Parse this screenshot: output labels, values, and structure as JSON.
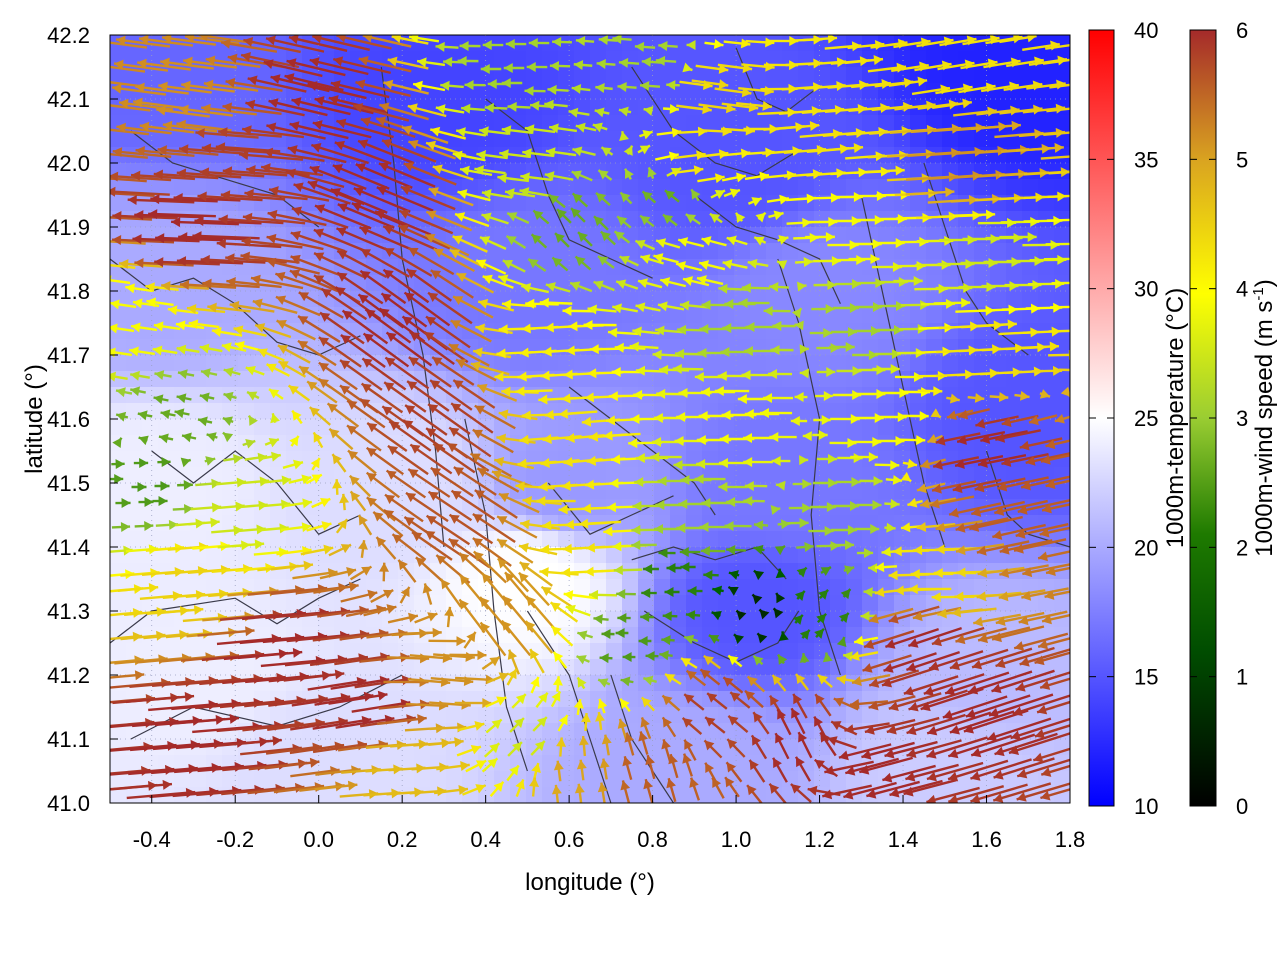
{
  "chart_data": {
    "type": "heatmap",
    "subtype": "temperature field with wind vectors and terrain contours",
    "xlabel": "longitude (°)",
    "ylabel": "latitude (°)",
    "xlim": [
      -0.5,
      1.8
    ],
    "ylim": [
      41.0,
      42.2
    ],
    "x_ticks": [
      -0.4,
      -0.2,
      0.0,
      0.2,
      0.4,
      0.6,
      0.8,
      1.0,
      1.2,
      1.4,
      1.6,
      1.8
    ],
    "x_tick_labels": [
      "-0.4",
      "-0.2",
      "0.0",
      "0.2",
      "0.4",
      "0.6",
      "0.8",
      "1.0",
      "1.2",
      "1.4",
      "1.6",
      "1.8"
    ],
    "y_ticks": [
      41.0,
      41.1,
      41.2,
      41.3,
      41.4,
      41.5,
      41.6,
      41.7,
      41.8,
      41.9,
      42.0,
      42.1,
      42.2
    ],
    "y_tick_labels": [
      "41.0",
      "41.1",
      "41.2",
      "41.3",
      "41.4",
      "41.5",
      "41.6",
      "41.7",
      "41.8",
      "41.9",
      "42.0",
      "42.1",
      "42.2"
    ],
    "grid": true,
    "temperature_colorbar": {
      "label": "1000m-temperature (°C)",
      "range": [
        10,
        40
      ],
      "ticks": [
        10,
        15,
        20,
        25,
        30,
        35,
        40
      ],
      "tick_labels": [
        "10",
        "15",
        "20",
        "25",
        "30",
        "35",
        "40"
      ],
      "colors": [
        "#0000ff",
        "#ffffff",
        "#ff0000"
      ]
    },
    "wind_colorbar": {
      "label_main": "1000m-wind speed (m s",
      "label_sup": "-1",
      "label_end": ")",
      "range": [
        0,
        6
      ],
      "ticks": [
        0,
        1,
        2,
        3,
        4,
        5,
        6
      ],
      "tick_labels": [
        "0",
        "1",
        "2",
        "3",
        "4",
        "5",
        "6"
      ],
      "colors": [
        "#000000",
        "#006400",
        "#9acd32",
        "#ffff00",
        "#daa520",
        "#a52a2a"
      ]
    },
    "temperature_field": [
      {
        "x": -0.4,
        "y": 42.15,
        "value": 16
      },
      {
        "x": 0.3,
        "y": 42.1,
        "value": 14
      },
      {
        "x": 1.0,
        "y": 42.0,
        "value": 15
      },
      {
        "x": 1.7,
        "y": 42.15,
        "value": 12
      },
      {
        "x": -0.4,
        "y": 41.8,
        "value": 20
      },
      {
        "x": 0.5,
        "y": 41.8,
        "value": 17
      },
      {
        "x": 1.2,
        "y": 41.8,
        "value": 18
      },
      {
        "x": 1.7,
        "y": 41.6,
        "value": 15
      },
      {
        "x": -0.4,
        "y": 41.5,
        "value": 24
      },
      {
        "x": 0.2,
        "y": 41.5,
        "value": 23
      },
      {
        "x": 0.6,
        "y": 41.5,
        "value": 19
      },
      {
        "x": 1.1,
        "y": 41.5,
        "value": 17
      },
      {
        "x": -0.3,
        "y": 41.2,
        "value": 24
      },
      {
        "x": 0.5,
        "y": 41.35,
        "value": 25
      },
      {
        "x": 1.05,
        "y": 41.3,
        "value": 15
      },
      {
        "x": 1.6,
        "y": 41.2,
        "value": 21
      },
      {
        "x": 0.0,
        "y": 41.05,
        "value": 23
      },
      {
        "x": 0.9,
        "y": 41.05,
        "value": 20
      },
      {
        "x": 1.5,
        "y": 41.05,
        "value": 22
      }
    ],
    "wind_regimes": [
      {
        "x": -0.3,
        "y": 42.1,
        "u": -4.5,
        "v": 0.6,
        "speed": 5.0
      },
      {
        "x": -0.2,
        "y": 42.0,
        "u": -5.5,
        "v": 0.4,
        "speed": 5.8
      },
      {
        "x": -0.3,
        "y": 41.9,
        "u": -5.8,
        "v": 0.2,
        "speed": 6.0
      },
      {
        "x": 0.0,
        "y": 42.1,
        "u": -5.0,
        "v": 1.2,
        "speed": 6.0
      },
      {
        "x": 0.15,
        "y": 41.95,
        "u": -4.8,
        "v": 2.0,
        "speed": 6.0
      },
      {
        "x": 0.2,
        "y": 41.75,
        "u": -3.8,
        "v": 2.8,
        "speed": 6.0
      },
      {
        "x": 0.3,
        "y": 41.6,
        "u": -3.5,
        "v": 2.5,
        "speed": 5.8
      },
      {
        "x": 0.35,
        "y": 41.45,
        "u": -3.6,
        "v": 2.4,
        "speed": 5.6
      },
      {
        "x": 0.45,
        "y": 41.3,
        "u": -2.5,
        "v": 3.0,
        "speed": 5.0
      },
      {
        "x": -0.45,
        "y": 41.75,
        "u": -2.0,
        "v": 0.3,
        "speed": 3.5
      },
      {
        "x": -0.35,
        "y": 41.6,
        "u": -1.0,
        "v": 0.2,
        "speed": 2.0
      },
      {
        "x": -0.4,
        "y": 41.5,
        "u": 1.0,
        "v": 0.0,
        "speed": 1.8
      },
      {
        "x": -0.2,
        "y": 41.45,
        "u": 2.5,
        "v": 0.2,
        "speed": 3.0
      },
      {
        "x": -0.3,
        "y": 41.35,
        "u": 3.5,
        "v": 0.3,
        "speed": 4.2
      },
      {
        "x": -0.1,
        "y": 41.25,
        "u": 5.5,
        "v": 0.5,
        "speed": 6.0
      },
      {
        "x": -0.3,
        "y": 41.1,
        "u": 6.0,
        "v": 0.5,
        "speed": 6.0
      },
      {
        "x": 0.1,
        "y": 41.15,
        "u": 5.0,
        "v": 0.8,
        "speed": 6.0
      },
      {
        "x": 0.3,
        "y": 41.2,
        "u": 3.5,
        "v": -0.3,
        "speed": 5.0
      },
      {
        "x": 0.2,
        "y": 41.05,
        "u": 3.0,
        "v": 0.2,
        "speed": 4.5
      },
      {
        "x": 0.5,
        "y": 41.1,
        "u": 1.0,
        "v": 1.0,
        "speed": 3.0
      },
      {
        "x": 0.6,
        "y": 41.05,
        "u": -0.2,
        "v": 1.5,
        "speed": 4.8
      },
      {
        "x": 0.55,
        "y": 41.7,
        "u": -3.0,
        "v": -0.2,
        "speed": 3.8
      },
      {
        "x": 0.6,
        "y": 41.55,
        "u": -3.2,
        "v": -0.3,
        "speed": 4.0
      },
      {
        "x": 0.65,
        "y": 41.4,
        "u": -3.5,
        "v": -0.2,
        "speed": 4.0
      },
      {
        "x": 0.5,
        "y": 42.0,
        "u": -2.5,
        "v": 0.3,
        "speed": 3.0
      },
      {
        "x": 0.45,
        "y": 42.15,
        "u": -1.5,
        "v": 0.0,
        "speed": 2.5
      },
      {
        "x": 0.6,
        "y": 41.9,
        "u": -1.0,
        "v": 1.0,
        "speed": 2.0
      },
      {
        "x": 0.8,
        "y": 42.15,
        "u": -1.5,
        "v": 0.1,
        "speed": 2.5
      },
      {
        "x": 0.85,
        "y": 41.95,
        "u": -1.0,
        "v": 0.8,
        "speed": 2.0
      },
      {
        "x": 0.9,
        "y": 42.0,
        "u": 2.5,
        "v": 0.3,
        "speed": 4.0
      },
      {
        "x": 0.95,
        "y": 42.1,
        "u": 3.0,
        "v": -0.4,
        "speed": 4.2
      },
      {
        "x": 0.9,
        "y": 41.85,
        "u": -2.0,
        "v": 0.5,
        "speed": 3.5
      },
      {
        "x": 1.0,
        "y": 41.75,
        "u": -2.5,
        "v": 0.0,
        "speed": 2.5
      },
      {
        "x": 1.0,
        "y": 41.6,
        "u": -2.8,
        "v": 0.0,
        "speed": 3.5
      },
      {
        "x": 0.9,
        "y": 41.45,
        "u": -2.5,
        "v": 0.0,
        "speed": 2.5
      },
      {
        "x": 0.85,
        "y": 41.35,
        "u": -1.0,
        "v": 0.0,
        "speed": 1.5
      },
      {
        "x": 1.05,
        "y": 41.3,
        "u": -0.2,
        "v": 0.2,
        "speed": 0.5
      },
      {
        "x": 0.75,
        "y": 41.25,
        "u": -0.8,
        "v": 0.0,
        "speed": 1.8
      },
      {
        "x": 0.95,
        "y": 41.15,
        "u": -1.5,
        "v": 1.2,
        "speed": 5.8
      },
      {
        "x": 0.8,
        "y": 41.05,
        "u": -0.5,
        "v": 1.8,
        "speed": 5.5
      },
      {
        "x": 1.15,
        "y": 41.1,
        "u": -1.0,
        "v": 2.0,
        "speed": 6.0
      },
      {
        "x": 1.2,
        "y": 42.05,
        "u": 3.5,
        "v": 0.3,
        "speed": 4.0
      },
      {
        "x": 1.3,
        "y": 41.9,
        "u": 2.5,
        "v": 0.0,
        "speed": 3.5
      },
      {
        "x": 1.3,
        "y": 41.75,
        "u": 2.0,
        "v": 0.0,
        "speed": 2.5
      },
      {
        "x": 1.35,
        "y": 41.6,
        "u": 2.5,
        "v": 0.0,
        "speed": 3.5
      },
      {
        "x": 1.25,
        "y": 41.45,
        "u": 2.0,
        "v": 0.0,
        "speed": 2.5
      },
      {
        "x": 1.2,
        "y": 41.3,
        "u": 0.5,
        "v": 0.5,
        "speed": 1.5
      },
      {
        "x": 1.55,
        "y": 42.15,
        "u": 3.0,
        "v": 0.5,
        "speed": 4.0
      },
      {
        "x": 1.55,
        "y": 42.0,
        "u": 4.5,
        "v": 0.3,
        "speed": 5.0
      },
      {
        "x": 1.6,
        "y": 41.85,
        "u": 3.0,
        "v": 0.0,
        "speed": 3.0
      },
      {
        "x": 1.6,
        "y": 41.7,
        "u": 3.5,
        "v": 0.2,
        "speed": 4.0
      },
      {
        "x": 1.6,
        "y": 41.55,
        "u": -4.0,
        "v": -0.8,
        "speed": 6.0
      },
      {
        "x": 1.65,
        "y": 41.45,
        "u": -4.5,
        "v": -1.0,
        "speed": 5.5
      },
      {
        "x": 1.5,
        "y": 41.35,
        "u": -3.5,
        "v": 0.0,
        "speed": 4.0
      },
      {
        "x": 1.45,
        "y": 41.25,
        "u": -4.5,
        "v": -1.5,
        "speed": 6.0
      },
      {
        "x": 1.6,
        "y": 41.15,
        "u": -5.5,
        "v": -1.8,
        "speed": 6.0
      },
      {
        "x": 1.35,
        "y": 41.05,
        "u": -4.5,
        "v": -1.2,
        "speed": 6.0
      }
    ],
    "terrain_contours": [
      {
        "points": [
          [
            -0.45,
            42.05
          ],
          [
            -0.35,
            42.0
          ],
          [
            -0.25,
            41.98
          ],
          [
            -0.1,
            41.95
          ],
          [
            0.0,
            41.9
          ]
        ]
      },
      {
        "points": [
          [
            -0.5,
            41.85
          ],
          [
            -0.4,
            41.8
          ],
          [
            -0.3,
            41.82
          ],
          [
            -0.2,
            41.78
          ],
          [
            -0.1,
            41.72
          ],
          [
            0.0,
            41.7
          ],
          [
            0.1,
            41.73
          ]
        ]
      },
      {
        "points": [
          [
            -0.4,
            41.55
          ],
          [
            -0.3,
            41.5
          ],
          [
            -0.2,
            41.55
          ],
          [
            -0.1,
            41.5
          ],
          [
            0.0,
            41.42
          ],
          [
            0.1,
            41.45
          ]
        ]
      },
      {
        "points": [
          [
            -0.5,
            41.25
          ],
          [
            -0.4,
            41.3
          ],
          [
            -0.2,
            41.32
          ],
          [
            -0.1,
            41.28
          ],
          [
            0.0,
            41.32
          ],
          [
            0.1,
            41.35
          ]
        ]
      },
      {
        "points": [
          [
            -0.45,
            41.1
          ],
          [
            -0.3,
            41.15
          ],
          [
            -0.1,
            41.12
          ],
          [
            0.05,
            41.15
          ],
          [
            0.2,
            41.2
          ]
        ]
      },
      {
        "points": [
          [
            0.15,
            42.15
          ],
          [
            0.18,
            42.0
          ],
          [
            0.2,
            41.85
          ],
          [
            0.25,
            41.7
          ],
          [
            0.28,
            41.55
          ],
          [
            0.3,
            41.4
          ]
        ]
      },
      {
        "points": [
          [
            0.35,
            41.6
          ],
          [
            0.4,
            41.45
          ],
          [
            0.42,
            41.3
          ],
          [
            0.45,
            41.15
          ],
          [
            0.5,
            41.05
          ]
        ]
      },
      {
        "points": [
          [
            0.5,
            41.3
          ],
          [
            0.55,
            41.25
          ],
          [
            0.6,
            41.2
          ],
          [
            0.65,
            41.1
          ],
          [
            0.7,
            41.0
          ]
        ]
      },
      {
        "points": [
          [
            0.4,
            42.1
          ],
          [
            0.5,
            42.05
          ],
          [
            0.55,
            41.95
          ],
          [
            0.6,
            41.88
          ],
          [
            0.7,
            41.85
          ],
          [
            0.8,
            41.82
          ]
        ]
      },
      {
        "points": [
          [
            0.75,
            42.15
          ],
          [
            0.85,
            42.05
          ],
          [
            0.95,
            42.0
          ],
          [
            1.05,
            41.98
          ],
          [
            1.15,
            42.02
          ]
        ]
      },
      {
        "points": [
          [
            1.0,
            42.18
          ],
          [
            1.05,
            42.1
          ],
          [
            1.12,
            42.08
          ],
          [
            1.2,
            42.12
          ]
        ]
      },
      {
        "points": [
          [
            0.6,
            41.65
          ],
          [
            0.7,
            41.6
          ],
          [
            0.8,
            41.55
          ],
          [
            0.9,
            41.5
          ],
          [
            0.95,
            41.45
          ]
        ]
      },
      {
        "points": [
          [
            0.75,
            41.38
          ],
          [
            0.85,
            41.4
          ],
          [
            0.95,
            41.38
          ],
          [
            1.05,
            41.4
          ],
          [
            1.12,
            41.35
          ]
        ]
      },
      {
        "points": [
          [
            0.78,
            41.3
          ],
          [
            0.9,
            41.25
          ],
          [
            1.0,
            41.22
          ],
          [
            1.1,
            41.25
          ],
          [
            1.15,
            41.3
          ]
        ]
      },
      {
        "points": [
          [
            0.7,
            41.2
          ],
          [
            0.75,
            41.1
          ],
          [
            0.8,
            41.05
          ],
          [
            0.85,
            41.0
          ]
        ]
      },
      {
        "points": [
          [
            1.1,
            41.85
          ],
          [
            1.15,
            41.75
          ],
          [
            1.2,
            41.6
          ],
          [
            1.18,
            41.45
          ],
          [
            1.2,
            41.3
          ],
          [
            1.25,
            41.2
          ]
        ]
      },
      {
        "points": [
          [
            1.3,
            41.95
          ],
          [
            1.35,
            41.8
          ],
          [
            1.4,
            41.65
          ],
          [
            1.45,
            41.5
          ],
          [
            1.5,
            41.4
          ]
        ]
      },
      {
        "points": [
          [
            1.45,
            42.0
          ],
          [
            1.5,
            41.9
          ],
          [
            1.55,
            41.8
          ],
          [
            1.6,
            41.75
          ],
          [
            1.7,
            41.7
          ]
        ]
      },
      {
        "points": [
          [
            1.6,
            41.55
          ],
          [
            1.65,
            41.45
          ],
          [
            1.7,
            41.42
          ],
          [
            1.8,
            41.4
          ]
        ]
      },
      {
        "points": [
          [
            0.9,
            41.95
          ],
          [
            1.0,
            41.9
          ],
          [
            1.1,
            41.88
          ],
          [
            1.2,
            41.85
          ],
          [
            1.25,
            41.78
          ]
        ]
      },
      {
        "points": [
          [
            0.55,
            41.5
          ],
          [
            0.65,
            41.42
          ],
          [
            0.75,
            41.45
          ],
          [
            0.85,
            41.48
          ]
        ]
      }
    ]
  }
}
